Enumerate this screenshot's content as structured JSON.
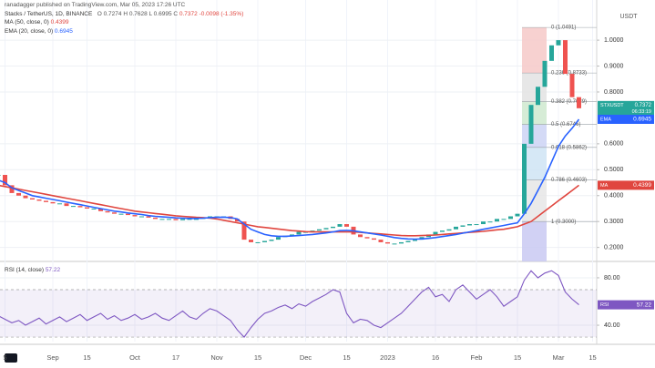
{
  "header": {
    "attribution": "ranadagger published on TradingView.com, Mar 05, 2023 17:26 UTC",
    "symbol": "Stacks / TetherUS, 1D, BINANCE",
    "ohlc": "O 0.7274 H 0.7628 L 0.6995 C",
    "change": "-0.0098 (-1.35%)"
  },
  "chart_data": [
    {
      "type": "candlestick",
      "y_unit": "USDT",
      "grid": true,
      "categories": [
        null,
        "5",
        null,
        null,
        null,
        null,
        null,
        null,
        "Sep",
        null,
        null,
        null,
        null,
        "15",
        null,
        null,
        null,
        null,
        null,
        null,
        "Oct",
        null,
        null,
        null,
        null,
        null,
        "17",
        null,
        null,
        null,
        null,
        null,
        "Nov",
        null,
        null,
        null,
        null,
        null,
        "15",
        null,
        null,
        null,
        null,
        null,
        null,
        "Dec",
        null,
        null,
        null,
        null,
        null,
        "15",
        null,
        null,
        null,
        null,
        null,
        "2023",
        null,
        null,
        null,
        null,
        null,
        null,
        "16",
        null,
        null,
        null,
        null,
        null,
        "Feb",
        null,
        null,
        null,
        null,
        null,
        "15",
        null,
        null,
        null,
        null,
        null,
        "Mar",
        null,
        null,
        null,
        null,
        "15"
      ],
      "ylim": [
        0.146,
        1.155
      ],
      "yticks": [
        {
          "value": 0.2,
          "label": "0.2000"
        },
        {
          "value": 0.3,
          "label": "0.3000"
        },
        {
          "value": 0.4,
          "label": "0.4000"
        },
        {
          "value": 0.5,
          "label": "0.5000"
        },
        {
          "value": 0.6,
          "label": "0.6000"
        },
        {
          "value": 0.8,
          "label": "0.8000"
        },
        {
          "value": 0.9,
          "label": "0.9000"
        },
        {
          "value": 1.0,
          "label": "1.0000"
        }
      ],
      "fib_levels": [
        {
          "value": 1.0491,
          "label": "0 (1.0491)",
          "color": "#f6c9c8"
        },
        {
          "value": 0.8733,
          "label": "0.236 (0.8733)",
          "color": "#e3e3e3"
        },
        {
          "value": 0.7629,
          "label": "0.382 (0.7629)",
          "color": "#cfe9cf"
        },
        {
          "value": 0.6746,
          "label": "0.5 (0.6746)",
          "color": "#cdd3f5"
        },
        {
          "value": 0.5862,
          "label": "0.618 (0.5862)",
          "color": "#cfe4f4"
        },
        {
          "value": 0.4603,
          "label": "0.786 (0.4603)",
          "color": "#e6e6e6"
        },
        {
          "value": 0.3,
          "label": "1 (0.3000)",
          "color": "#c9c9f2"
        }
      ],
      "series": [
        {
          "name": "STXUSDT",
          "style": "candles",
          "color": "#26a69a",
          "down_color": "#ef5350",
          "countdown": "06:33:19",
          "values": [
            0.48,
            0.44,
            0.41,
            0.4,
            0.39,
            0.385,
            0.38,
            0.375,
            0.37,
            0.37,
            0.36,
            0.36,
            0.355,
            0.35,
            0.35,
            0.34,
            0.335,
            0.33,
            0.33,
            0.325,
            0.32,
            0.32,
            0.315,
            0.31,
            0.31,
            0.31,
            0.305,
            0.31,
            0.31,
            0.31,
            0.315,
            0.32,
            0.32,
            0.32,
            0.31,
            0.3,
            0.23,
            0.22,
            0.22,
            0.225,
            0.23,
            0.24,
            0.245,
            0.25,
            0.26,
            0.26,
            0.265,
            0.27,
            0.275,
            0.28,
            0.29,
            0.28,
            0.25,
            0.24,
            0.235,
            0.23,
            0.22,
            0.215,
            0.215,
            0.22,
            0.225,
            0.23,
            0.24,
            0.25,
            0.26,
            0.265,
            0.27,
            0.28,
            0.285,
            0.29,
            0.29,
            0.3,
            0.3,
            0.31,
            0.31,
            0.32,
            0.33,
            0.6,
            0.75,
            0.82,
            0.92,
            0.98,
            1.0,
            0.87,
            0.78,
            0.7372,
            null,
            null
          ]
        },
        {
          "name": "MA (50, close, 0)",
          "tag": "MA",
          "style": "line",
          "color": "#e0463f",
          "values": [
            0.44,
            0.435,
            0.43,
            0.425,
            0.42,
            0.415,
            0.41,
            0.405,
            0.4,
            0.395,
            0.39,
            0.385,
            0.38,
            0.375,
            0.37,
            0.365,
            0.36,
            0.355,
            0.35,
            0.345,
            0.34,
            0.337,
            0.334,
            0.331,
            0.328,
            0.325,
            0.322,
            0.32,
            0.318,
            0.316,
            0.315,
            0.313,
            0.31,
            0.305,
            0.3,
            0.295,
            0.29,
            0.285,
            0.28,
            0.277,
            0.274,
            0.271,
            0.268,
            0.265,
            0.263,
            0.261,
            0.26,
            0.26,
            0.26,
            0.26,
            0.26,
            0.26,
            0.26,
            0.258,
            0.256,
            0.254,
            0.252,
            0.25,
            0.248,
            0.246,
            0.245,
            0.245,
            0.246,
            0.247,
            0.248,
            0.25,
            0.252,
            0.254,
            0.256,
            0.258,
            0.26,
            0.262,
            0.265,
            0.268,
            0.27,
            0.275,
            0.28,
            0.29,
            0.3,
            0.32,
            0.34,
            0.36,
            0.38,
            0.4,
            0.42,
            0.4399,
            null,
            null
          ]
        },
        {
          "name": "EMA (20, close, 0)",
          "tag": "EMA",
          "style": "line",
          "color": "#2962ff",
          "values": [
            0.46,
            0.45,
            0.43,
            0.42,
            0.41,
            0.4,
            0.395,
            0.39,
            0.385,
            0.38,
            0.375,
            0.37,
            0.365,
            0.36,
            0.355,
            0.35,
            0.345,
            0.34,
            0.337,
            0.333,
            0.33,
            0.327,
            0.323,
            0.32,
            0.318,
            0.316,
            0.314,
            0.313,
            0.312,
            0.312,
            0.313,
            0.315,
            0.316,
            0.317,
            0.315,
            0.31,
            0.29,
            0.27,
            0.26,
            0.25,
            0.245,
            0.243,
            0.243,
            0.244,
            0.246,
            0.248,
            0.25,
            0.253,
            0.256,
            0.26,
            0.265,
            0.266,
            0.264,
            0.26,
            0.256,
            0.252,
            0.248,
            0.243,
            0.238,
            0.235,
            0.233,
            0.232,
            0.233,
            0.235,
            0.238,
            0.242,
            0.246,
            0.25,
            0.255,
            0.26,
            0.265,
            0.27,
            0.275,
            0.28,
            0.285,
            0.29,
            0.295,
            0.33,
            0.37,
            0.42,
            0.47,
            0.53,
            0.59,
            0.63,
            0.66,
            0.6945,
            null,
            null
          ]
        }
      ]
    },
    {
      "type": "line",
      "grid": true,
      "ylim": [
        26.2,
        93.8
      ],
      "yticks": [
        {
          "value": 80,
          "label": "80.00"
        },
        {
          "value": 40,
          "label": "40.00"
        }
      ],
      "band": [
        30,
        70
      ],
      "series": [
        {
          "name": "RSI (14, close)",
          "tag": "RSI",
          "style": "line",
          "color": "#7e57c2",
          "values": [
            48,
            45,
            42,
            44,
            40,
            43,
            46,
            41,
            44,
            47,
            43,
            46,
            49,
            44,
            47,
            50,
            45,
            48,
            44,
            46,
            49,
            45,
            47,
            50,
            46,
            44,
            48,
            52,
            47,
            45,
            50,
            54,
            52,
            48,
            44,
            36,
            30,
            38,
            45,
            50,
            52,
            55,
            57,
            54,
            58,
            56,
            60,
            63,
            66,
            70,
            68,
            50,
            42,
            45,
            44,
            40,
            38,
            42,
            46,
            50,
            56,
            62,
            68,
            72,
            64,
            66,
            60,
            70,
            74,
            68,
            62,
            66,
            70,
            64,
            56,
            60,
            64,
            78,
            86,
            80,
            84,
            86,
            82,
            68,
            62,
            57.22,
            null,
            null
          ]
        }
      ]
    }
  ]
}
